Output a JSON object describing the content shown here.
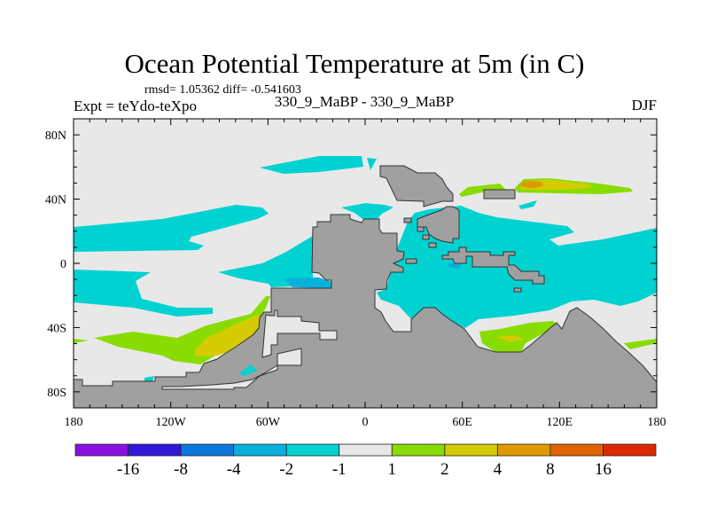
{
  "header": {
    "title": "Ocean Potential Temperature at 5m (in C)",
    "stats": "rmsd= 1.05362 diff= -0.541603",
    "left_label": "Expt = teYdo-teXpo",
    "center_label": "330_9_MaBP - 330_9_MaBP",
    "right_label": "DJF"
  },
  "chart_data": {
    "type": "heatmap",
    "title": "Ocean Potential Temperature at 5m (in C)",
    "projection": "cylindrical-equidistant",
    "xlim": [
      -180,
      180
    ],
    "ylim": [
      -90,
      90
    ],
    "x_ticks": [
      {
        "value": -180,
        "label": "180"
      },
      {
        "value": -120,
        "label": "120W"
      },
      {
        "value": -60,
        "label": "60W"
      },
      {
        "value": 0,
        "label": "0"
      },
      {
        "value": 60,
        "label": "60E"
      },
      {
        "value": 120,
        "label": "120E"
      },
      {
        "value": 180,
        "label": "180"
      }
    ],
    "y_ticks": [
      {
        "value": 80,
        "label": "80N"
      },
      {
        "value": 40,
        "label": "40N"
      },
      {
        "value": 0,
        "label": "0"
      },
      {
        "value": -40,
        "label": "40S"
      },
      {
        "value": -80,
        "label": "80S"
      }
    ],
    "land_color": "#a0a0a0",
    "colorbar": {
      "levels": [
        "-16",
        "-8",
        "-4",
        "-2",
        "-1",
        "1",
        "2",
        "4",
        "8",
        "16"
      ],
      "colors": [
        "#8a10e0",
        "#3018d8",
        "#0a78dc",
        "#08b0dc",
        "#00d2d2",
        "#e8e8e8",
        "#88dc00",
        "#d4cc00",
        "#e09a00",
        "#e06400",
        "#e02800"
      ]
    }
  }
}
